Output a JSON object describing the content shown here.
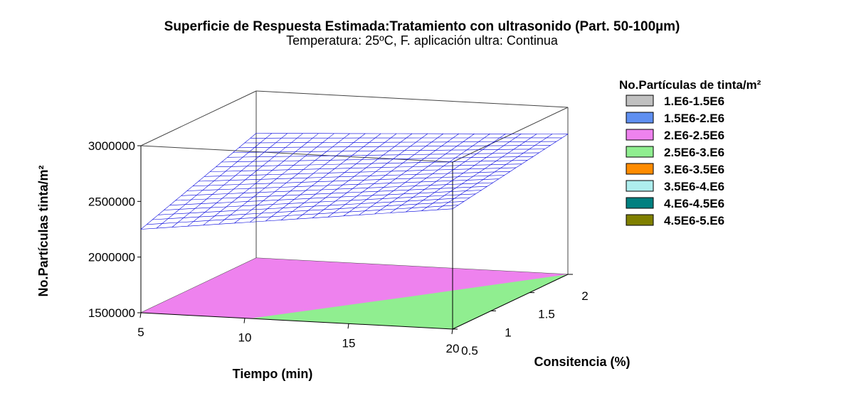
{
  "chart_data": {
    "type": "surface3d",
    "title": "Superficie de Respuesta Estimada:Tratamiento con ultrasonido (Part. 50-100µm)",
    "subtitle": "Temperatura: 25ºC, F. aplicación ultra: Continua",
    "xlabel": "Tiempo (min)",
    "ylabel": "Consitencia (%)",
    "zlabel": "No.Partículas tinta/m²",
    "x_ticks": [
      "5",
      "10",
      "15",
      "20"
    ],
    "y_ticks": [
      "0.5",
      "1",
      "1.5",
      "2"
    ],
    "z_ticks": [
      "1500000",
      "2000000",
      "2500000",
      "3000000"
    ],
    "xlim": [
      5,
      20
    ],
    "ylim": [
      0.5,
      2
    ],
    "zlim": [
      1500000,
      3000000
    ],
    "surface_corners_z": {
      "x5_y0.5": 2250000,
      "x20_y0.5": 2580000,
      "x5_y2": 2620000,
      "x20_y2": 2760000
    },
    "legend_title": "No.Partículas de tinta/m²",
    "legend": [
      {
        "label": "1.E6-1.5E6",
        "color": "#c0c0c0"
      },
      {
        "label": "1.5E6-2.E6",
        "color": "#5f8ff0"
      },
      {
        "label": "2.E6-2.5E6",
        "color": "#ee82ee"
      },
      {
        "label": "2.5E6-3.E6",
        "color": "#90ee90"
      },
      {
        "label": "3.E6-3.5E6",
        "color": "#ff8c00"
      },
      {
        "label": "3.5E6-4.E6",
        "color": "#aeeeee"
      },
      {
        "label": "4.E6-4.5E6",
        "color": "#008080"
      },
      {
        "label": "4.5E6-5.E6",
        "color": "#808000"
      }
    ],
    "mesh_color": "#0000dd",
    "legend_placement": "right"
  }
}
